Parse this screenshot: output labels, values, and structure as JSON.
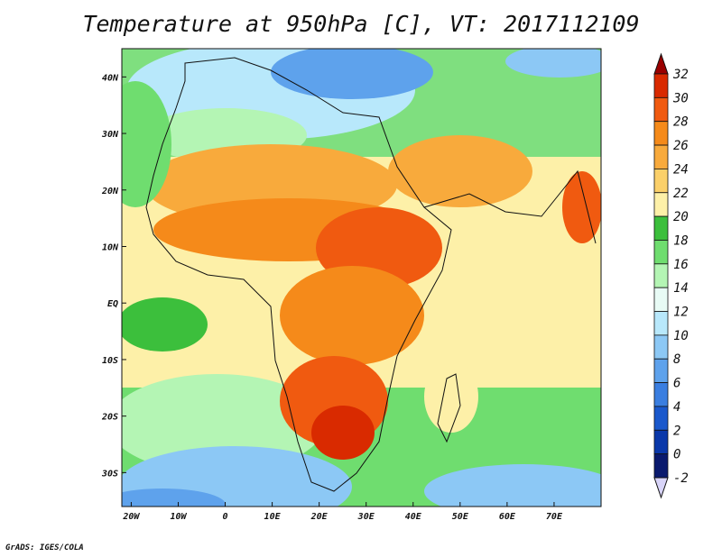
{
  "title": "Temperature at 950hPa [C], VT: 2017112109",
  "credit": "GrADS: IGES/COLA",
  "chart_data": {
    "type": "heatmap",
    "variable": "Temperature at 950hPa",
    "units": "C",
    "valid_time": "2017112109",
    "lon_range": [
      -22,
      80
    ],
    "lat_range": [
      -36,
      45
    ],
    "x_tick_labels": [
      "20W",
      "10W",
      "0",
      "10E",
      "20E",
      "30E",
      "40E",
      "50E",
      "60E",
      "70E"
    ],
    "x_tick_values": [
      -20,
      -10,
      0,
      10,
      20,
      30,
      40,
      50,
      60,
      70
    ],
    "y_tick_labels": [
      "40N",
      "30N",
      "20N",
      "10N",
      "EQ",
      "10S",
      "20S",
      "30S"
    ],
    "y_tick_values": [
      40,
      30,
      20,
      10,
      0,
      -10,
      -20,
      -30
    ],
    "colorbar": {
      "levels": [
        "32",
        "30",
        "28",
        "26",
        "24",
        "22",
        "20",
        "18",
        "16",
        "14",
        "12",
        "10",
        "8",
        "6",
        "4",
        "2",
        "0",
        "-2"
      ],
      "colors": [
        "#9a0000",
        "#d92a00",
        "#f05a10",
        "#f58a1a",
        "#f8aa3c",
        "#fbd06a",
        "#fdf0a8",
        "#3cbf3c",
        "#6fdd6f",
        "#b4f5b4",
        "#e8fbf5",
        "#b8e8fb",
        "#8cc8f5",
        "#5ea2ec",
        "#3a7ee0",
        "#1a58cc",
        "#0a38aa",
        "#0a1a6e",
        "#d8d4f8"
      ]
    }
  }
}
